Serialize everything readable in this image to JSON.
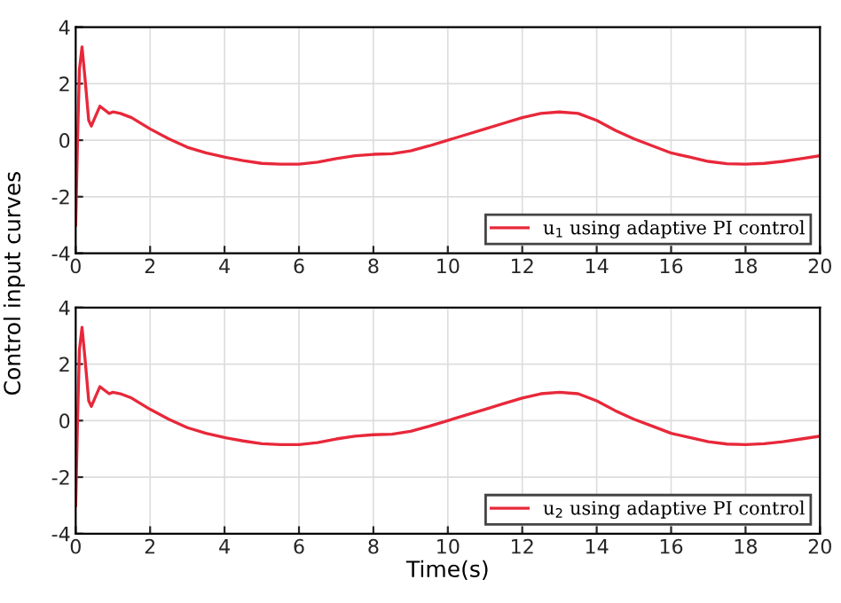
{
  "chart_data": [
    {
      "type": "line",
      "ylabel": "Control input curves",
      "x": [
        0,
        0.05,
        0.1,
        0.17,
        0.25,
        0.35,
        0.42,
        0.55,
        0.65,
        0.75,
        0.9,
        1,
        1.2,
        1.5,
        2,
        2.5,
        3,
        3.5,
        4,
        4.5,
        5,
        5.5,
        6,
        6.5,
        7,
        7.5,
        8,
        8.5,
        9,
        9.5,
        10,
        10.5,
        11,
        11.5,
        12,
        12.5,
        13,
        13.5,
        14,
        14.5,
        15,
        15.5,
        16,
        16.5,
        17,
        17.5,
        18,
        18.5,
        19,
        19.5,
        20
      ],
      "series": [
        {
          "name": "u$_{1}$ using adaptive PI control",
          "color": "#e8283a",
          "values": [
            -3,
            0,
            2.5,
            3.3,
            2.2,
            0.7,
            0.5,
            0.9,
            1.2,
            1.1,
            0.95,
            1.0,
            0.95,
            0.8,
            0.4,
            0.05,
            -0.25,
            -0.45,
            -0.6,
            -0.72,
            -0.82,
            -0.85,
            -0.85,
            -0.78,
            -0.65,
            -0.55,
            -0.5,
            -0.48,
            -0.38,
            -0.2,
            0,
            0.2,
            0.4,
            0.6,
            0.8,
            0.95,
            1.0,
            0.95,
            0.7,
            0.35,
            0.05,
            -0.2,
            -0.45,
            -0.6,
            -0.75,
            -0.83,
            -0.85,
            -0.82,
            -0.75,
            -0.65,
            -0.55
          ]
        }
      ],
      "xlim": [
        0,
        20
      ],
      "xticks": [
        0,
        2,
        4,
        6,
        8,
        10,
        12,
        14,
        16,
        18,
        20
      ],
      "ylim": [
        -4,
        4
      ],
      "yticks": [
        -4,
        -2,
        0,
        2,
        4
      ],
      "grid": true,
      "legend": "bottom right",
      "marker": "none",
      "line_style": "solid"
    },
    {
      "type": "line",
      "xlabel": "Time(s)",
      "x": [
        0,
        0.05,
        0.1,
        0.17,
        0.25,
        0.35,
        0.42,
        0.55,
        0.65,
        0.75,
        0.9,
        1,
        1.2,
        1.5,
        2,
        2.5,
        3,
        3.5,
        4,
        4.5,
        5,
        5.5,
        6,
        6.5,
        7,
        7.5,
        8,
        8.5,
        9,
        9.5,
        10,
        10.5,
        11,
        11.5,
        12,
        12.5,
        13,
        13.5,
        14,
        14.5,
        15,
        15.5,
        16,
        16.5,
        17,
        17.5,
        18,
        18.5,
        19,
        19.5,
        20
      ],
      "series": [
        {
          "name": "u$_{2}$ using adaptive PI control",
          "color": "#e8283a",
          "values": [
            -3,
            0,
            2.5,
            3.3,
            2.2,
            0.7,
            0.5,
            0.9,
            1.2,
            1.1,
            0.95,
            1.0,
            0.95,
            0.8,
            0.4,
            0.05,
            -0.25,
            -0.45,
            -0.6,
            -0.72,
            -0.82,
            -0.85,
            -0.85,
            -0.78,
            -0.65,
            -0.55,
            -0.5,
            -0.48,
            -0.38,
            -0.2,
            0,
            0.2,
            0.4,
            0.6,
            0.8,
            0.95,
            1.0,
            0.95,
            0.7,
            0.35,
            0.05,
            -0.2,
            -0.45,
            -0.6,
            -0.75,
            -0.83,
            -0.85,
            -0.82,
            -0.75,
            -0.65,
            -0.55
          ]
        }
      ],
      "xlim": [
        0,
        20
      ],
      "xticks": [
        0,
        2,
        4,
        6,
        8,
        10,
        12,
        14,
        16,
        18,
        20
      ],
      "ylim": [
        -4,
        4
      ],
      "yticks": [
        -4,
        -2,
        0,
        2,
        4
      ],
      "grid": true,
      "legend": "bottom right",
      "marker": "none",
      "line_style": "solid"
    }
  ]
}
